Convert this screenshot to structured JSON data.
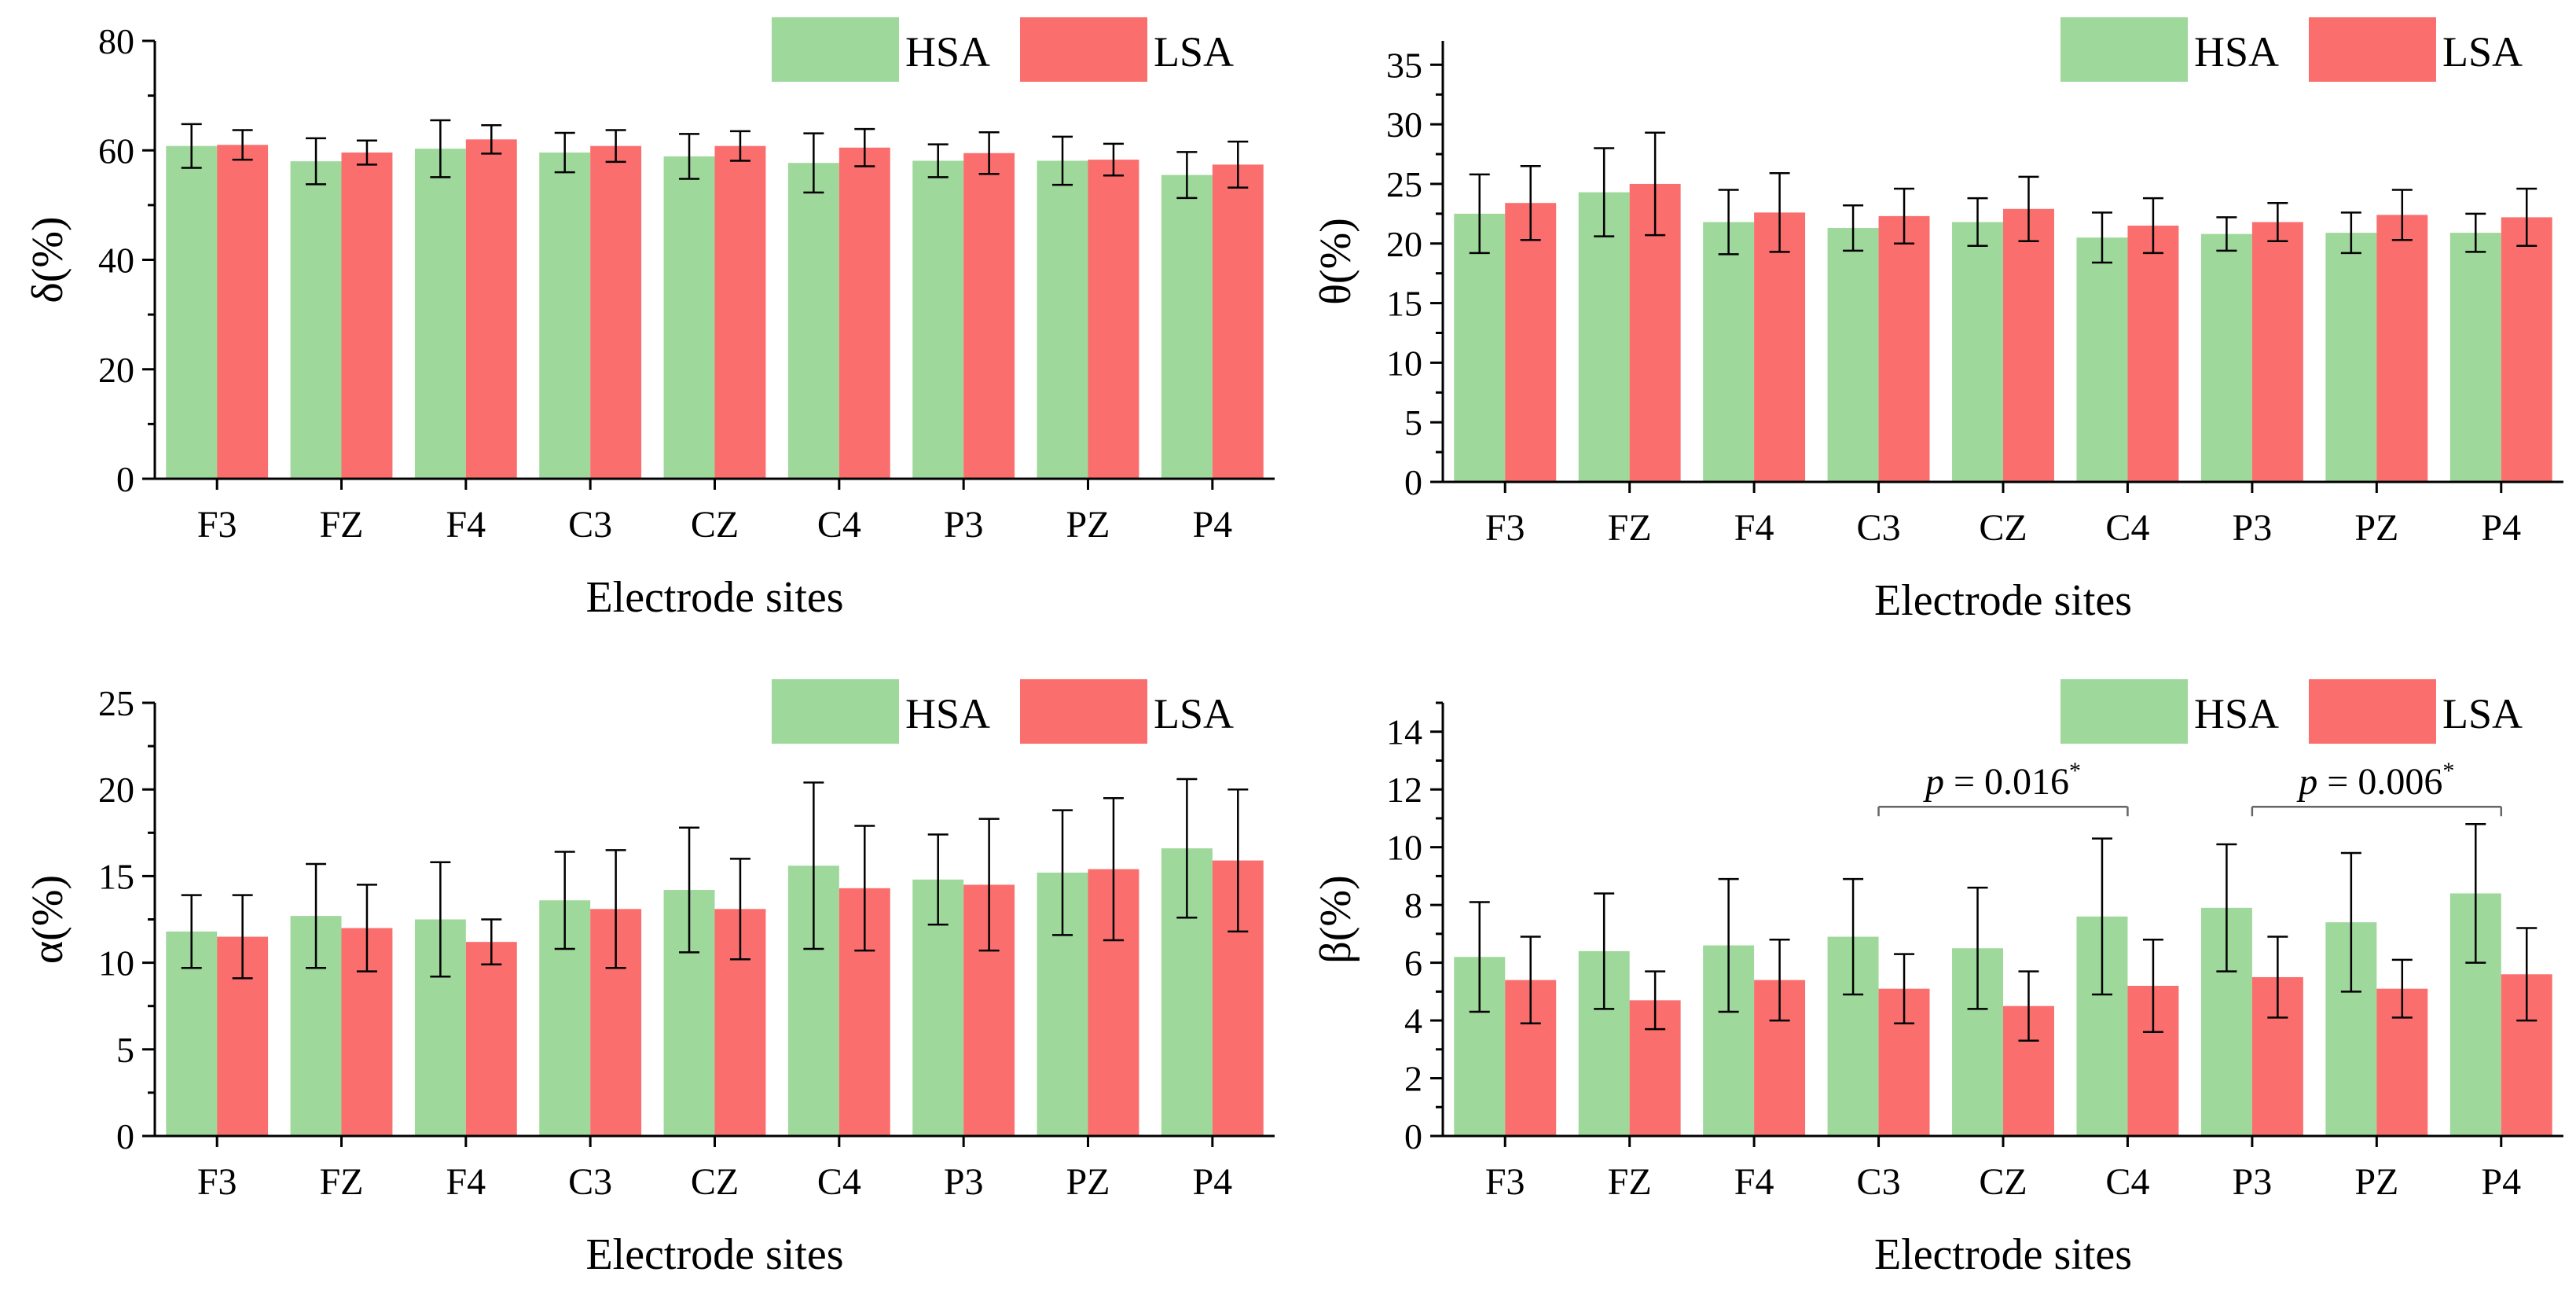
{
  "colors": {
    "hsa": "#9ed89b",
    "lsa": "#fb6e6e",
    "axis": "#000000",
    "bracket": "#666666"
  },
  "chart_data": [
    {
      "type": "bar",
      "ylabel": "δ(%)",
      "xlabel": "Electrode sites",
      "ylim": [
        0,
        80
      ],
      "yticks": [
        "0",
        "20",
        "40",
        "60",
        "80"
      ],
      "categories": [
        "F3",
        "FZ",
        "F4",
        "C3",
        "CZ",
        "C4",
        "P3",
        "PZ",
        "P4"
      ],
      "legend": {
        "position": "top-right",
        "labels": [
          "HSA",
          "LSA"
        ]
      },
      "series": [
        {
          "name": "HSA",
          "values": [
            60.8,
            58.0,
            60.3,
            59.6,
            58.9,
            57.7,
            58.1,
            58.1,
            55.5
          ],
          "errors": [
            4.0,
            4.2,
            5.2,
            3.6,
            4.1,
            5.4,
            3.0,
            4.4,
            4.2
          ]
        },
        {
          "name": "LSA",
          "values": [
            61.0,
            59.6,
            62.0,
            60.8,
            60.8,
            60.5,
            59.5,
            58.3,
            57.4
          ],
          "errors": [
            2.7,
            2.2,
            2.6,
            2.9,
            2.7,
            3.4,
            3.8,
            2.9,
            4.2
          ]
        }
      ],
      "annotations": []
    },
    {
      "type": "bar",
      "ylabel": "θ(%)",
      "xlabel": "Electrode sites",
      "ylim": [
        0,
        37
      ],
      "yticks": [
        "0",
        "5",
        "10",
        "15",
        "20",
        "25",
        "30",
        "35"
      ],
      "categories": [
        "F3",
        "FZ",
        "F4",
        "C3",
        "CZ",
        "C4",
        "P3",
        "PZ",
        "P4"
      ],
      "legend": {
        "position": "top-right",
        "labels": [
          "HSA",
          "LSA"
        ]
      },
      "series": [
        {
          "name": "HSA",
          "values": [
            22.5,
            24.3,
            21.8,
            21.3,
            21.8,
            20.5,
            20.8,
            20.9,
            20.9
          ],
          "errors": [
            3.3,
            3.7,
            2.7,
            1.9,
            2.0,
            2.1,
            1.4,
            1.7,
            1.6
          ]
        },
        {
          "name": "LSA",
          "values": [
            23.4,
            25.0,
            22.6,
            22.3,
            22.9,
            21.5,
            21.8,
            22.4,
            22.2
          ],
          "errors": [
            3.1,
            4.3,
            3.3,
            2.3,
            2.7,
            2.3,
            1.6,
            2.1,
            2.4
          ]
        }
      ],
      "annotations": []
    },
    {
      "type": "bar",
      "ylabel": "α(%)",
      "xlabel": "Electrode sites",
      "ylim": [
        0,
        25
      ],
      "yticks": [
        "0",
        "5",
        "10",
        "15",
        "20",
        "25"
      ],
      "categories": [
        "F3",
        "FZ",
        "F4",
        "C3",
        "CZ",
        "C4",
        "P3",
        "PZ",
        "P4"
      ],
      "legend": {
        "position": "top-right",
        "labels": [
          "HSA",
          "LSA"
        ]
      },
      "series": [
        {
          "name": "HSA",
          "values": [
            11.8,
            12.7,
            12.5,
            13.6,
            14.2,
            15.6,
            14.8,
            15.2,
            16.6
          ],
          "errors": [
            2.1,
            3.0,
            3.3,
            2.8,
            3.6,
            4.8,
            2.6,
            3.6,
            4.0
          ]
        },
        {
          "name": "LSA",
          "values": [
            11.5,
            12.0,
            11.2,
            13.1,
            13.1,
            14.3,
            14.5,
            15.4,
            15.9
          ],
          "errors": [
            2.4,
            2.5,
            1.3,
            3.4,
            2.9,
            3.6,
            3.8,
            4.1,
            4.1
          ]
        }
      ],
      "annotations": []
    },
    {
      "type": "bar",
      "ylabel": "β(%)",
      "xlabel": "Electrode sites",
      "ylim": [
        0,
        15
      ],
      "yticks": [
        "0",
        "2",
        "4",
        "6",
        "8",
        "10",
        "12",
        "14"
      ],
      "categories": [
        "F3",
        "FZ",
        "F4",
        "C3",
        "CZ",
        "C4",
        "P3",
        "PZ",
        "P4"
      ],
      "legend": {
        "position": "top-right",
        "labels": [
          "HSA",
          "LSA"
        ]
      },
      "series": [
        {
          "name": "HSA",
          "values": [
            6.2,
            6.4,
            6.6,
            6.9,
            6.5,
            7.6,
            7.9,
            7.4,
            8.4
          ],
          "errors": [
            1.9,
            2.0,
            2.3,
            2.0,
            2.1,
            2.7,
            2.2,
            2.4,
            2.4
          ]
        },
        {
          "name": "LSA",
          "values": [
            5.4,
            4.7,
            5.4,
            5.1,
            4.5,
            5.2,
            5.5,
            5.1,
            5.6
          ],
          "errors": [
            1.5,
            1.0,
            1.4,
            1.2,
            1.2,
            1.6,
            1.4,
            1.0,
            1.6
          ]
        }
      ],
      "annotations": [
        {
          "from": "C3",
          "to": "C4",
          "y": 11.4,
          "p": "p",
          "label": " = 0.016",
          "star": "*"
        },
        {
          "from": "P3",
          "to": "P4",
          "y": 11.4,
          "p": "p",
          "label": " = 0.006",
          "star": "*"
        }
      ]
    }
  ]
}
